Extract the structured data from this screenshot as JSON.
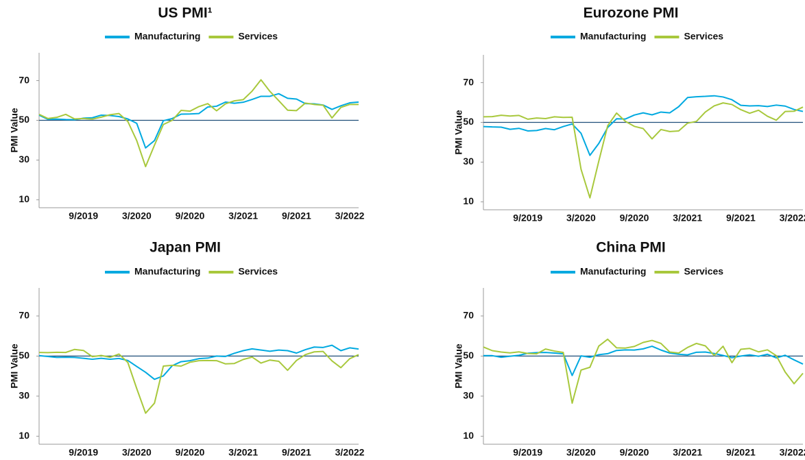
{
  "chart_data": [
    {
      "type": "line",
      "title": "US PMI¹",
      "ylabel": "PMI Value",
      "ylim": [
        6,
        84
      ],
      "yticks": [
        10,
        30,
        50,
        70
      ],
      "hline": 50,
      "hline_color": "#1f4e79",
      "categories": [
        null,
        null,
        null,
        null,
        null,
        "9/2019",
        null,
        null,
        null,
        null,
        null,
        "3/2020",
        null,
        null,
        null,
        null,
        null,
        "9/2020",
        null,
        null,
        null,
        null,
        null,
        "3/2021",
        null,
        null,
        null,
        null,
        null,
        "9/2021",
        null,
        null,
        null,
        null,
        null,
        "3/2022",
        null
      ],
      "series": [
        {
          "name": "Manufacturing",
          "color": "#00a9e0",
          "values": [
            52.6,
            50.5,
            50.6,
            50.4,
            50.3,
            51.1,
            51.3,
            52.6,
            52.4,
            51.9,
            50.7,
            48.5,
            36.1,
            39.8,
            49.8,
            50.9,
            53.1,
            53.2,
            53.4,
            56.7,
            57.1,
            59.2,
            58.6,
            59.1,
            60.5,
            62.1,
            62.1,
            63.4,
            61.1,
            60.7,
            58.4,
            58.3,
            57.7,
            55.5,
            57.3,
            58.8,
            59.2
          ]
        },
        {
          "name": "Services",
          "color": "#a8c83c",
          "values": [
            53.0,
            50.9,
            51.5,
            53.0,
            50.7,
            50.9,
            50.6,
            51.6,
            52.8,
            53.4,
            49.4,
            39.8,
            26.7,
            37.5,
            47.9,
            50.0,
            55.0,
            54.6,
            56.9,
            58.4,
            54.8,
            58.3,
            59.8,
            60.4,
            64.7,
            70.4,
            64.6,
            59.9,
            55.1,
            54.9,
            58.7,
            58.0,
            57.6,
            51.2,
            56.5,
            58.0,
            58.0
          ]
        }
      ]
    },
    {
      "type": "line",
      "title": "Eurozone PMI",
      "ylabel": "PMI Value",
      "ylim": [
        6,
        84
      ],
      "yticks": [
        10,
        30,
        50,
        70
      ],
      "hline": 50,
      "hline_color": "#1f4e79",
      "categories": [
        null,
        null,
        null,
        null,
        null,
        "9/2019",
        null,
        null,
        null,
        null,
        null,
        "3/2020",
        null,
        null,
        null,
        null,
        null,
        "9/2020",
        null,
        null,
        null,
        null,
        null,
        "3/2021",
        null,
        null,
        null,
        null,
        null,
        "9/2021",
        null,
        null,
        null,
        null,
        null,
        "3/2022",
        null
      ],
      "series": [
        {
          "name": "Manufacturing",
          "color": "#00a9e0",
          "values": [
            47.9,
            47.7,
            47.6,
            46.5,
            47.0,
            45.7,
            45.9,
            46.9,
            46.3,
            47.9,
            49.2,
            44.5,
            33.4,
            39.4,
            47.4,
            51.8,
            51.7,
            53.7,
            54.8,
            53.8,
            55.2,
            54.8,
            57.9,
            62.5,
            62.9,
            63.1,
            63.4,
            62.8,
            61.4,
            58.6,
            58.3,
            58.4,
            58.0,
            58.7,
            58.2,
            56.5,
            55.5
          ]
        },
        {
          "name": "Services",
          "color": "#a8c83c",
          "values": [
            52.8,
            52.9,
            53.6,
            53.2,
            53.5,
            51.6,
            52.2,
            51.9,
            52.8,
            52.5,
            52.6,
            26.4,
            12.0,
            30.5,
            48.3,
            54.7,
            50.5,
            48.0,
            46.9,
            41.7,
            46.4,
            45.4,
            45.7,
            49.6,
            50.5,
            55.2,
            58.3,
            59.8,
            59.0,
            56.4,
            54.6,
            56.1,
            53.1,
            51.1,
            55.5,
            55.6,
            57.7
          ]
        }
      ]
    },
    {
      "type": "line",
      "title": "Japan PMI",
      "ylabel": "PMI Value",
      "ylim": [
        6,
        84
      ],
      "yticks": [
        10,
        30,
        50,
        70
      ],
      "hline": 50,
      "hline_color": "#1f4e79",
      "categories": [
        null,
        null,
        null,
        null,
        null,
        "9/2019",
        null,
        null,
        null,
        null,
        null,
        "3/2020",
        null,
        null,
        null,
        null,
        null,
        "9/2020",
        null,
        null,
        null,
        null,
        null,
        "3/2021",
        null,
        null,
        null,
        null,
        null,
        "9/2021",
        null,
        null,
        null,
        null,
        null,
        "3/2022",
        null
      ],
      "series": [
        {
          "name": "Manufacturing",
          "color": "#00a9e0",
          "values": [
            50.2,
            49.8,
            49.3,
            49.4,
            49.3,
            48.9,
            48.4,
            48.9,
            48.4,
            48.8,
            47.8,
            44.8,
            41.9,
            38.4,
            40.1,
            45.2,
            47.2,
            47.7,
            48.7,
            49.0,
            50.0,
            49.8,
            51.4,
            52.7,
            53.6,
            53.0,
            52.4,
            53.0,
            52.7,
            51.5,
            53.2,
            54.5,
            54.3,
            55.4,
            52.7,
            54.1,
            53.5
          ]
        },
        {
          "name": "Services",
          "color": "#a8c83c",
          "values": [
            51.8,
            51.7,
            51.9,
            51.8,
            53.3,
            52.8,
            49.7,
            50.3,
            49.4,
            51.0,
            46.8,
            33.8,
            21.5,
            26.5,
            45.0,
            45.4,
            45.0,
            46.9,
            47.7,
            47.8,
            47.7,
            46.1,
            46.3,
            48.3,
            49.5,
            46.5,
            48.0,
            47.4,
            42.9,
            47.8,
            50.7,
            52.1,
            52.3,
            47.6,
            44.2,
            48.7,
            50.7
          ]
        }
      ]
    },
    {
      "type": "line",
      "title": "China PMI",
      "ylabel": "PMI Value",
      "ylim": [
        6,
        84
      ],
      "yticks": [
        10,
        30,
        50,
        70
      ],
      "hline": 50,
      "hline_color": "#1f4e79",
      "categories": [
        null,
        null,
        null,
        null,
        null,
        "9/2019",
        null,
        null,
        null,
        null,
        null,
        "3/2020",
        null,
        null,
        null,
        null,
        null,
        "9/2020",
        null,
        null,
        null,
        null,
        null,
        "3/2021",
        null,
        null,
        null,
        null,
        null,
        "9/2021",
        null,
        null,
        null,
        null,
        null,
        "3/2022",
        null
      ],
      "series": [
        {
          "name": "Manufacturing",
          "color": "#00a9e0",
          "values": [
            50.2,
            50.2,
            49.4,
            49.9,
            50.4,
            51.4,
            51.7,
            51.8,
            51.5,
            51.1,
            40.3,
            50.1,
            49.4,
            50.7,
            51.2,
            52.8,
            53.1,
            53.0,
            53.6,
            54.9,
            53.0,
            51.5,
            50.9,
            50.6,
            51.9,
            52.0,
            51.3,
            50.3,
            49.2,
            50.0,
            50.6,
            49.9,
            50.9,
            49.1,
            50.4,
            48.1,
            46.0
          ]
        },
        {
          "name": "Services",
          "color": "#a8c83c",
          "values": [
            54.5,
            52.7,
            52.0,
            51.6,
            52.1,
            51.3,
            51.1,
            53.5,
            52.5,
            51.8,
            26.5,
            43.0,
            44.4,
            55.0,
            58.4,
            54.1,
            54.0,
            54.8,
            56.8,
            57.8,
            56.3,
            52.0,
            51.5,
            54.3,
            56.3,
            55.1,
            50.3,
            54.9,
            46.7,
            53.4,
            53.8,
            52.1,
            53.1,
            50.2,
            42.0,
            36.2,
            41.4
          ]
        }
      ]
    }
  ]
}
